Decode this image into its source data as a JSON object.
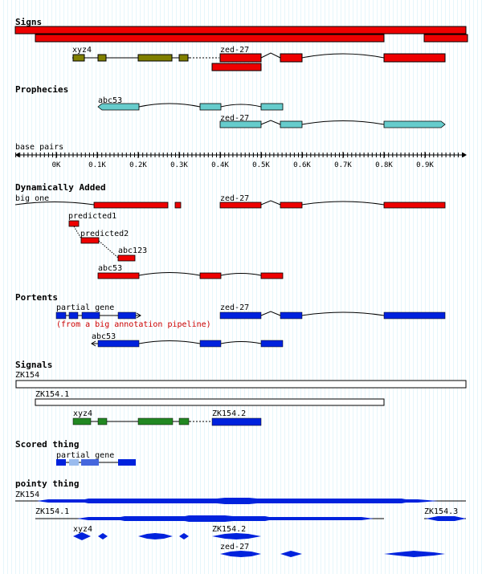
{
  "colors": {
    "red": "#ee0000",
    "olive": "#808000",
    "cyan": "#66cccc",
    "blue": "#0022dd",
    "green": "#228822",
    "light_blue": "#99bbee",
    "white": "#ffffff",
    "note_red": "#cc0000"
  },
  "tracks": {
    "signs": {
      "title": "Signs"
    },
    "prophecies": {
      "title": "Prophecies"
    },
    "base_pairs": {
      "title": "base pairs",
      "ticks": [
        "0K",
        "0.1K",
        "0.2K",
        "0.3K",
        "0.4K",
        "0.5K",
        "0.6K",
        "0.7K",
        "0.8K",
        "0.9K"
      ]
    },
    "dynamically_added": {
      "title": "Dynamically Added"
    },
    "portents": {
      "title": "Portents"
    },
    "signals": {
      "title": "Signals"
    },
    "scored_thing": {
      "title": "Scored thing"
    },
    "pointy_thing": {
      "title": "pointy thing"
    }
  },
  "features": {
    "signs_xyz4": "xyz4",
    "signs_zed27": "zed-27",
    "prophecies_abc53": "abc53",
    "prophecies_zed27": "zed-27",
    "dyn_big_one": "big one",
    "dyn_zed27": "zed-27",
    "dyn_predicted1": "predicted1",
    "dyn_predicted2": "predicted2",
    "dyn_abc123": "abc123",
    "dyn_abc53": "abc53",
    "portents_partial_gene": "partial gene",
    "portents_note": "(from a big annotation pipeline)",
    "portents_zed27": "zed-27",
    "portents_abc53": "abc53",
    "signals_zk154": "ZK154",
    "signals_zk154_1": "ZK154.1",
    "signals_xyz4": "xyz4",
    "signals_zk154_2": "ZK154.2",
    "scored_partial_gene": "partial gene",
    "pointy_zk154": "ZK154",
    "pointy_zk154_1": "ZK154.1",
    "pointy_zk154_3": "ZK154.3",
    "pointy_xyz4": "xyz4",
    "pointy_zk154_2": "ZK154.2",
    "pointy_zed27": "zed-27"
  }
}
